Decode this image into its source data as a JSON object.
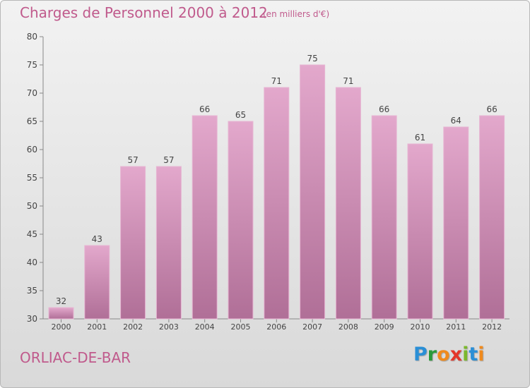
{
  "chart_data": {
    "type": "bar",
    "title": "Charges de Personnel 2000 à 2012",
    "subtitle": "(en milliers d'€)",
    "categories": [
      "2000",
      "2001",
      "2002",
      "2003",
      "2004",
      "2005",
      "2006",
      "2007",
      "2008",
      "2009",
      "2010",
      "2011",
      "2012"
    ],
    "values": [
      32,
      43,
      57,
      57,
      66,
      65,
      71,
      75,
      71,
      66,
      61,
      64,
      66
    ],
    "ylim": [
      30,
      80
    ],
    "yticks": [
      30,
      35,
      40,
      45,
      50,
      55,
      60,
      65,
      70,
      75,
      80
    ],
    "grid": false,
    "bar_color": "#d68fbb"
  },
  "place_name": "ORLIAC-DE-BAR",
  "logo": {
    "letters": [
      "P",
      "r",
      "o",
      "x",
      "i",
      "t",
      "i"
    ]
  },
  "colors": {
    "accent": "#c05a8c",
    "bar": "#d68fbb",
    "bar_dark": "#b06f97"
  }
}
